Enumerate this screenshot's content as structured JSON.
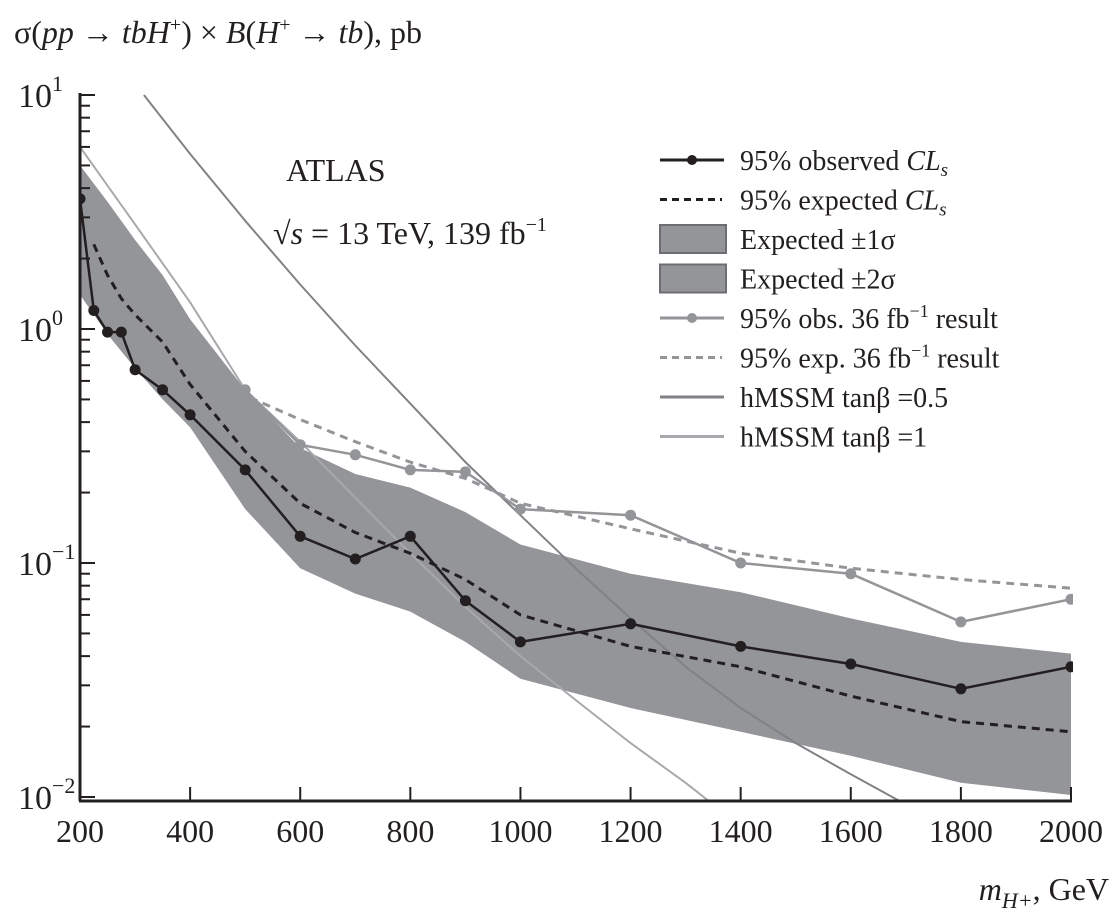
{
  "chart_data": {
    "type": "line",
    "title": "",
    "ylabel": "σ(pp → tbH⁺) × B(H⁺ → tb), pb",
    "ylabel_parts": {
      "sigma": "σ(",
      "pp": "pp",
      "arrow1": " → ",
      "tbH": "tbH",
      "sup_plus1": "+",
      "close1": ") × ",
      "B": "B",
      "open2": "(",
      "H": "H",
      "sup_plus2": "+",
      "arrow2": " → ",
      "tb": "tb",
      "close2": "), pb"
    },
    "xlabel": "m_H+, GeV",
    "xlabel_parts": {
      "m": "m",
      "sub": "H+",
      "unit": ", GeV"
    },
    "xscale": "linear",
    "yscale": "log",
    "xlim": [
      200,
      2000
    ],
    "ylim": [
      0.01,
      10
    ],
    "x_ticks": [
      200,
      400,
      600,
      800,
      1000,
      1200,
      1400,
      1600,
      1800,
      2000
    ],
    "x_tick_labels": [
      "200",
      "400",
      "600",
      "800",
      "1000",
      "1200",
      "1400",
      "1600",
      "1800",
      "2000"
    ],
    "y_ticks": [
      {
        "value": 10,
        "base": "10",
        "exp": "1"
      },
      {
        "value": 1,
        "base": "10",
        "exp": "0"
      },
      {
        "value": 0.1,
        "base": "10",
        "exp": "−1"
      },
      {
        "value": 0.01,
        "base": "10",
        "exp": "−2"
      }
    ],
    "grid": false,
    "annotations": {
      "experiment": "ATLAS",
      "energy_sqrt": "√",
      "energy_s": "s",
      "energy_rest": " = 13 TeV, 139 fb",
      "energy_sup": "−1"
    },
    "legend": {
      "placement": "top-right",
      "entries": [
        {
          "key": "obs",
          "text": "95% observed ",
          "ital": "CL",
          "sub": "s"
        },
        {
          "key": "exp",
          "text": "95% expected ",
          "ital": "CL",
          "sub": "s"
        },
        {
          "key": "band1",
          "text": "Expected ±1σ"
        },
        {
          "key": "band2",
          "text": "Expected ±2σ"
        },
        {
          "key": "obs36",
          "text": "95% obs. 36 fb",
          "sup": "−1",
          "after": " result"
        },
        {
          "key": "exp36",
          "text": "95% exp. 36 fb",
          "sup": "−1",
          "after": " result"
        },
        {
          "key": "hmssm05",
          "text": "hMSSM tanβ =0.5"
        },
        {
          "key": "hmssm1",
          "text": "hMSSM tanβ =1"
        }
      ]
    },
    "colors": {
      "observed": "#231f20",
      "expected": "#231f20",
      "band": "#939598",
      "band_edge": "#6d6e71",
      "obs36": "#939598",
      "exp36": "#939598",
      "hmssm05": "#808285",
      "hmssm1": "#a7a9ac"
    },
    "series": [
      {
        "name": "95% observed CLs",
        "key": "obs",
        "style": "solid-markers",
        "x": [
          200,
          225,
          250,
          275,
          300,
          350,
          400,
          500,
          600,
          700,
          800,
          900,
          1000,
          1200,
          1400,
          1600,
          1800,
          2000
        ],
        "y": [
          3.6,
          1.2,
          0.97,
          0.97,
          0.67,
          0.55,
          0.43,
          0.25,
          0.13,
          0.104,
          0.13,
          0.069,
          0.046,
          0.055,
          0.044,
          0.037,
          0.029,
          0.036
        ]
      },
      {
        "name": "95% expected CLs",
        "key": "exp",
        "style": "dashed",
        "x": [
          225,
          250,
          275,
          300,
          350,
          400,
          500,
          600,
          700,
          800,
          900,
          1000,
          1200,
          1400,
          1600,
          1800,
          2000
        ],
        "y": [
          2.3,
          1.7,
          1.35,
          1.15,
          0.88,
          0.58,
          0.3,
          0.18,
          0.135,
          0.11,
          0.085,
          0.06,
          0.044,
          0.036,
          0.027,
          0.021,
          0.019
        ]
      },
      {
        "name": "Expected ±2σ band",
        "key": "band",
        "style": "band",
        "x": [
          200,
          250,
          300,
          350,
          400,
          500,
          600,
          700,
          800,
          900,
          1000,
          1200,
          1400,
          1600,
          1800,
          2000
        ],
        "upper": [
          5.0,
          3.5,
          2.4,
          1.7,
          1.1,
          0.55,
          0.31,
          0.24,
          0.21,
          0.165,
          0.12,
          0.09,
          0.075,
          0.058,
          0.046,
          0.041
        ],
        "lower": [
          1.4,
          0.95,
          0.68,
          0.5,
          0.38,
          0.17,
          0.095,
          0.074,
          0.062,
          0.046,
          0.032,
          0.024,
          0.019,
          0.015,
          0.0115,
          0.0102
        ]
      },
      {
        "name": "95% obs. 36 fb-1 result",
        "key": "obs36",
        "style": "solid-markers",
        "x": [
          200,
          225,
          250,
          275,
          300,
          350,
          400,
          500,
          600,
          700,
          800,
          900,
          1000,
          1200,
          1400,
          1600,
          1800,
          2000
        ],
        "y": [
          2.8,
          1.6,
          1.25,
          0.95,
          0.75,
          0.62,
          0.5,
          0.55,
          0.32,
          0.29,
          0.25,
          0.245,
          0.17,
          0.16,
          0.1,
          0.09,
          0.056,
          0.07
        ]
      },
      {
        "name": "95% exp. 36 fb-1 result",
        "key": "exp36",
        "style": "dashed",
        "x": [
          250,
          300,
          350,
          400,
          500,
          600,
          700,
          800,
          900,
          1000,
          1200,
          1400,
          1600,
          1800,
          2000
        ],
        "y": [
          1.9,
          1.5,
          1.2,
          0.95,
          0.52,
          0.41,
          0.33,
          0.27,
          0.23,
          0.18,
          0.14,
          0.11,
          0.095,
          0.085,
          0.078
        ]
      },
      {
        "name": "hMSSM tanβ=0.5",
        "key": "hmssm05",
        "style": "solid",
        "x": [
          316,
          400,
          500,
          600,
          700,
          800,
          900,
          1000,
          1100,
          1200,
          1300,
          1400,
          1500,
          1600,
          1700
        ],
        "y": [
          10,
          5.6,
          2.9,
          1.55,
          0.85,
          0.48,
          0.27,
          0.16,
          0.095,
          0.058,
          0.036,
          0.024,
          0.017,
          0.0125,
          0.0093
        ]
      },
      {
        "name": "hMSSM tanβ=1",
        "key": "hmssm1",
        "style": "solid",
        "x": [
          200,
          300,
          400,
          500,
          600,
          700,
          800,
          900,
          1000,
          1100,
          1200,
          1300,
          1350
        ],
        "y": [
          6.0,
          2.8,
          1.3,
          0.55,
          0.33,
          0.19,
          0.11,
          0.065,
          0.04,
          0.026,
          0.017,
          0.0115,
          0.0093
        ]
      }
    ]
  }
}
